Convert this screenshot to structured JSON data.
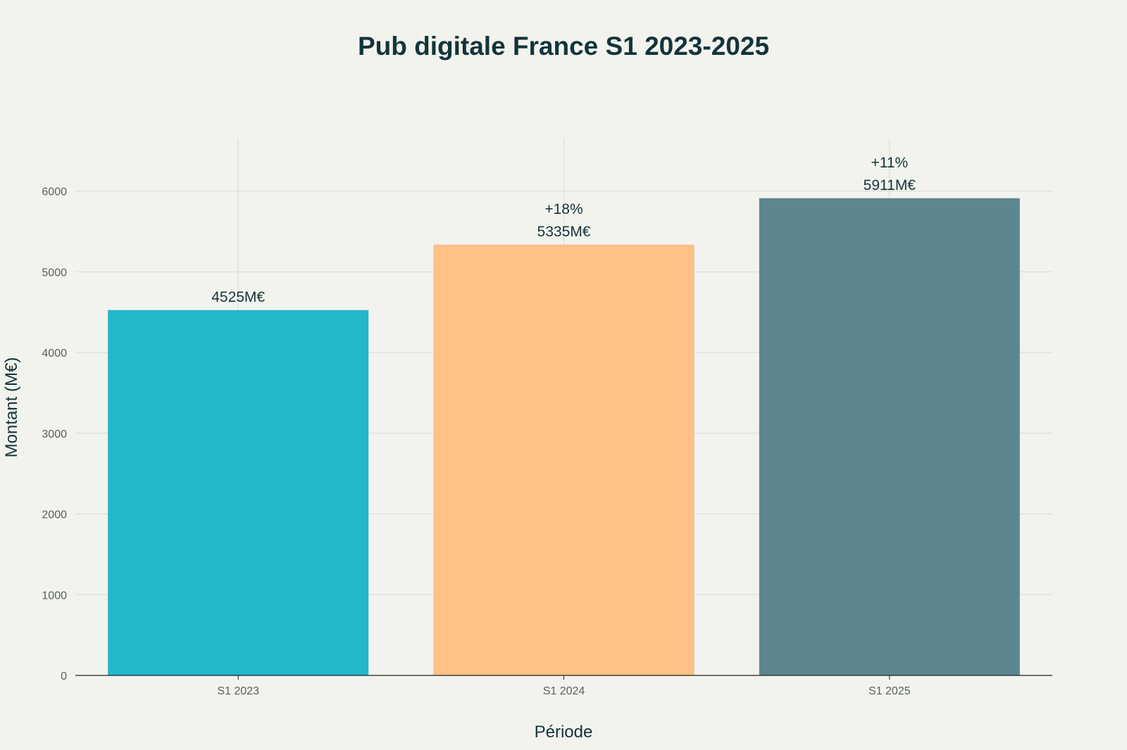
{
  "chart_data": {
    "type": "bar",
    "title": "Pub digitale France S1 2023-2025",
    "xlabel": "Période",
    "ylabel": "Montant (M€)",
    "categories": [
      "S1 2023",
      "S1 2024",
      "S1 2025"
    ],
    "values": [
      4525,
      5335,
      5911
    ],
    "value_labels": [
      "4525M€",
      "5335M€",
      "5911M€"
    ],
    "growth_labels": [
      "",
      "+18%",
      "+11%"
    ],
    "colors": [
      "#21b8cc",
      "#ffc185",
      "#5d878f"
    ],
    "ylim": [
      0,
      6650
    ],
    "yticks": [
      0,
      1000,
      2000,
      3000,
      4000,
      5000,
      6000
    ],
    "grid": true,
    "legend": "none"
  }
}
